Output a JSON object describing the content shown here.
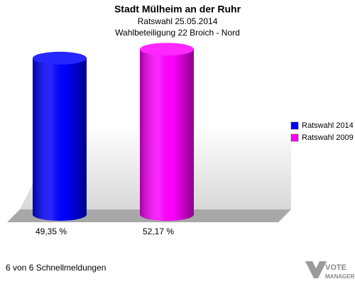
{
  "chart_data": {
    "type": "cylinder-bar",
    "title": "Stadt Mülheim an der Ruhr",
    "subtitle": [
      "Ratswahl 25.05.2014",
      "Wahlbeteiligung 22 Broich - Nord"
    ],
    "series": [
      {
        "name": "Ratswahl 2014",
        "color": "#0000ff",
        "values": [
          49.35
        ],
        "value_labels": [
          "49,35 %"
        ]
      },
      {
        "name": "Ratswahl 2009",
        "color": "#ff00ff",
        "values": [
          52.17
        ],
        "value_labels": [
          "52,17 %"
        ]
      }
    ],
    "legend": "right",
    "footer": "6 von 6 Schnellmeldungen",
    "logo": [
      "VOTE",
      "MANAGER"
    ]
  }
}
